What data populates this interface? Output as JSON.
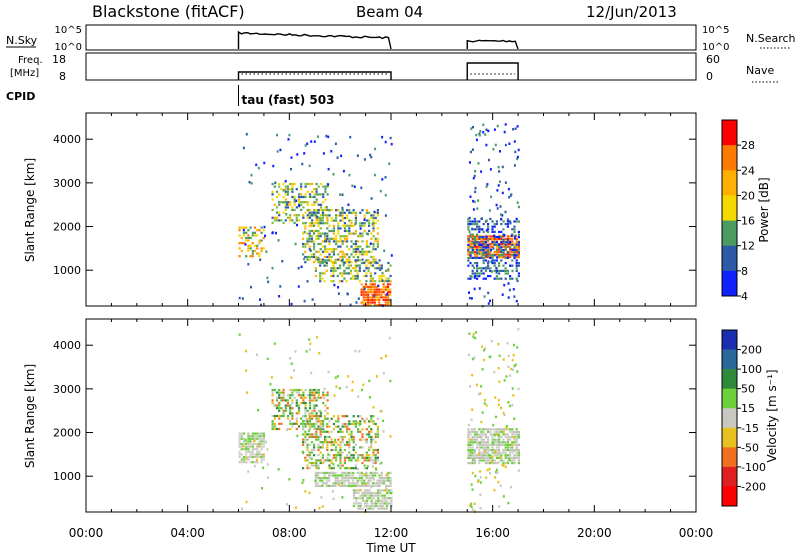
{
  "header": {
    "title": "Blackstone (fitACF)",
    "beam": "Beam 04",
    "date": "12/Jun/2013"
  },
  "strip_panels": {
    "nsky": {
      "label": "N.Sky",
      "left_ticks": [
        "10^5",
        "10^0"
      ],
      "right_ticks": [
        "10^5",
        "10^0"
      ],
      "right_label": "N.Search",
      "segments": [
        [
          6.0,
          12.0
        ],
        [
          15.0,
          17.0
        ]
      ]
    },
    "freq": {
      "label_line1": "Freq.",
      "label_line2": "[MHz]",
      "left_ticks": [
        "18",
        "8"
      ],
      "right_ticks": [
        "60",
        "0"
      ],
      "right_label": "Nave",
      "segments": [
        [
          6.0,
          12.0
        ],
        [
          15.0,
          17.0
        ]
      ]
    },
    "cpid": {
      "label": "CPID",
      "text": "tau (fast) 503",
      "start_hour": 6.0
    }
  },
  "x_axis": {
    "label": "Time UT",
    "ticks": [
      "00:00",
      "04:00",
      "08:00",
      "12:00",
      "16:00",
      "20:00",
      "00:00"
    ],
    "range_hours": [
      0,
      24
    ]
  },
  "chart_data": [
    {
      "type": "heatmap",
      "title": "",
      "xlabel": "Time UT",
      "ylabel": "Slant Range [km]",
      "xlim_hours": [
        0,
        24
      ],
      "ylim_km": [
        180,
        4600
      ],
      "yticks": [
        "1000",
        "2000",
        "3000",
        "4000"
      ],
      "colorbar": {
        "label": "Power [dB]",
        "ticks": [
          "28",
          "24",
          "20",
          "16",
          "12",
          "8",
          "4"
        ],
        "colors": [
          "#ff0000",
          "#ff7a00",
          "#ffb000",
          "#f5d800",
          "#4b9a62",
          "#2a5aa8",
          "#1020ff"
        ]
      },
      "regions": [
        {
          "t": [
            6.0,
            7.0
          ],
          "r": [
            1300,
            2000
          ],
          "level": "high"
        },
        {
          "t": [
            7.3,
            9.5
          ],
          "r": [
            2100,
            3000
          ],
          "level": "mid"
        },
        {
          "t": [
            8.5,
            11.5
          ],
          "r": [
            1200,
            2400
          ],
          "level": "mid"
        },
        {
          "t": [
            9.0,
            12.0
          ],
          "r": [
            750,
            1250
          ],
          "level": "mid"
        },
        {
          "t": [
            10.8,
            12.0
          ],
          "r": [
            200,
            700
          ],
          "level": "max"
        },
        {
          "t": [
            15.0,
            17.0
          ],
          "r": [
            1300,
            1800
          ],
          "level": "max"
        },
        {
          "t": [
            15.0,
            17.0
          ],
          "r": [
            800,
            2200
          ],
          "level": "low"
        }
      ]
    },
    {
      "type": "heatmap",
      "title": "",
      "xlabel": "Time UT",
      "ylabel": "Slant Range [km]",
      "xlim_hours": [
        0,
        24
      ],
      "ylim_km": [
        180,
        4600
      ],
      "yticks": [
        "1000",
        "2000",
        "3000",
        "4000"
      ],
      "colorbar": {
        "label": "Velocity [m s⁻¹]",
        "ticks": [
          "200",
          "100",
          "50",
          "15",
          "-15",
          "-50",
          "-100",
          "-200"
        ],
        "colors": [
          "#1a2fb0",
          "#2a6a9a",
          "#2e8a3a",
          "#6cd03a",
          "#c8c8c0",
          "#e8c020",
          "#f07020",
          "#e02020",
          "#ff0000"
        ]
      },
      "regions": [
        {
          "t": [
            6.0,
            7.0
          ],
          "r": [
            1300,
            2000
          ],
          "level": "ground"
        },
        {
          "t": [
            7.3,
            9.5
          ],
          "r": [
            2100,
            3000
          ],
          "level": "pos"
        },
        {
          "t": [
            8.5,
            11.5
          ],
          "r": [
            1200,
            2400
          ],
          "level": "pos"
        },
        {
          "t": [
            9.0,
            12.0
          ],
          "r": [
            750,
            1100
          ],
          "level": "ground"
        },
        {
          "t": [
            10.5,
            12.0
          ],
          "r": [
            250,
            700
          ],
          "level": "ground"
        },
        {
          "t": [
            15.0,
            17.0
          ],
          "r": [
            1300,
            2100
          ],
          "level": "ground"
        }
      ]
    }
  ]
}
